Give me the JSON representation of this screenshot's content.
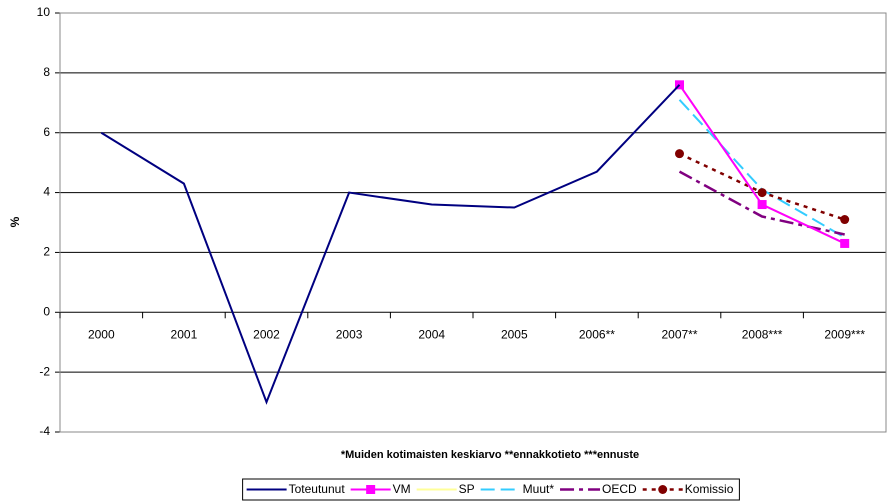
{
  "chart_data": {
    "type": "line",
    "ylabel": "%",
    "annotation": "*Muiden kotimaisten keskiarvo **ennakkotieto ***ennuste",
    "categories": [
      "2000",
      "2001",
      "2002",
      "2003",
      "2004",
      "2005",
      "2006**",
      "2007**",
      "2008***",
      "2009***"
    ],
    "series": [
      {
        "name": "Toteutunut",
        "color": "#000080",
        "dash": "solid",
        "marker": "none",
        "values": [
          6,
          4.3,
          -3,
          4,
          3.6,
          3.5,
          4.7,
          7.6,
          null,
          null
        ]
      },
      {
        "name": "VM",
        "color": "#ff00ff",
        "dash": "solid",
        "marker": "square",
        "values": [
          null,
          null,
          null,
          null,
          null,
          null,
          null,
          7.6,
          3.6,
          2.3
        ]
      },
      {
        "name": "SP",
        "color": "#ffff99",
        "dash": "solid",
        "marker": "none",
        "values": [
          null,
          null,
          null,
          null,
          null,
          null,
          null,
          7.6,
          3.6,
          2.3
        ]
      },
      {
        "name": "Muut*",
        "color": "#33ccff",
        "dash": "dashed",
        "marker": "none",
        "values": [
          null,
          null,
          null,
          null,
          null,
          null,
          null,
          7.1,
          4.1,
          2.5
        ]
      },
      {
        "name": "OECD",
        "color": "#800080",
        "dash": "dashdot",
        "marker": "none",
        "values": [
          null,
          null,
          null,
          null,
          null,
          null,
          null,
          4.7,
          3.2,
          2.6
        ]
      },
      {
        "name": "Komissio",
        "color": "#800000",
        "dash": "dotted",
        "marker": "circle",
        "values": [
          null,
          null,
          null,
          null,
          null,
          null,
          null,
          5.3,
          4.0,
          3.1
        ]
      }
    ],
    "ylim": [
      -4,
      10
    ],
    "yticks": [
      -4,
      -2,
      0,
      2,
      4,
      6,
      8,
      10
    ],
    "grid": true,
    "legend": "bottom"
  }
}
